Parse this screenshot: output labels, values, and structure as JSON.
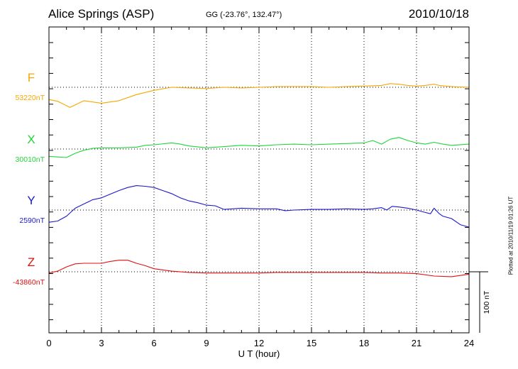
{
  "header": {
    "station": "Alice Springs (ASP)",
    "coords": "GG (-23.76°, 132.47°)",
    "date": "2010/10/18"
  },
  "footer": {
    "plotted": "Plotted at 2010/11/19 01:26 UT"
  },
  "colors": {
    "F": "#f5a800",
    "X": "#1fd63a",
    "Y": "#1a1acc",
    "Z": "#e01010",
    "axes": "#000000",
    "grid": "#000000"
  },
  "chart_data": {
    "type": "line",
    "xlabel": "U T (hour)",
    "xlim": [
      0,
      24
    ],
    "xticks": [
      0,
      3,
      6,
      9,
      12,
      15,
      18,
      21,
      24
    ],
    "grid": true,
    "scale_bar": {
      "label": "100 nT",
      "value": 100
    },
    "series": [
      {
        "name": "F",
        "baseline_label": "53220nT",
        "baseline": 53220,
        "points": [
          [
            0,
            53200
          ],
          [
            0.5,
            53197
          ],
          [
            1.2,
            53187
          ],
          [
            2,
            53198
          ],
          [
            3,
            53194
          ],
          [
            4,
            53198
          ],
          [
            5,
            53208
          ],
          [
            6,
            53215
          ],
          [
            7,
            53220
          ],
          [
            8,
            53219
          ],
          [
            9,
            53218
          ],
          [
            10,
            53220
          ],
          [
            11,
            53219
          ],
          [
            12,
            53220
          ],
          [
            13,
            53221
          ],
          [
            14,
            53221
          ],
          [
            15,
            53221
          ],
          [
            16,
            53220
          ],
          [
            17,
            53221
          ],
          [
            18,
            53222
          ],
          [
            19,
            53223
          ],
          [
            19.5,
            53226
          ],
          [
            20,
            53225
          ],
          [
            20.5,
            53223
          ],
          [
            21,
            53222
          ],
          [
            21.5,
            53223
          ],
          [
            22,
            53225
          ],
          [
            22.3,
            53223
          ],
          [
            23,
            53221
          ],
          [
            24,
            53220
          ]
        ]
      },
      {
        "name": "X",
        "baseline_label": "30010nT",
        "baseline": 30010,
        "points": [
          [
            0,
            29998
          ],
          [
            0.5,
            29997
          ],
          [
            1,
            29996
          ],
          [
            1.5,
            30003
          ],
          [
            2,
            30008
          ],
          [
            2.5,
            30011
          ],
          [
            3,
            30012
          ],
          [
            4,
            30012
          ],
          [
            5,
            30013
          ],
          [
            5.5,
            30016
          ],
          [
            6,
            30017
          ],
          [
            7,
            30020
          ],
          [
            7.5,
            30018
          ],
          [
            8,
            30015
          ],
          [
            9,
            30012
          ],
          [
            10,
            30014
          ],
          [
            11,
            30016
          ],
          [
            12,
            30015
          ],
          [
            13,
            30017
          ],
          [
            14,
            30018
          ],
          [
            15,
            30017
          ],
          [
            16,
            30018
          ],
          [
            17,
            30019
          ],
          [
            18,
            30020
          ],
          [
            18.5,
            30024
          ],
          [
            19,
            30018
          ],
          [
            19.5,
            30026
          ],
          [
            20,
            30029
          ],
          [
            20.5,
            30024
          ],
          [
            21,
            30020
          ],
          [
            21.5,
            30018
          ],
          [
            22,
            30021
          ],
          [
            22.5,
            30018
          ],
          [
            23,
            30016
          ],
          [
            24,
            30018
          ]
        ]
      },
      {
        "name": "Y",
        "baseline_label": "2590nT",
        "baseline": 2590,
        "points": [
          [
            0,
            2570
          ],
          [
            0.5,
            2572
          ],
          [
            1,
            2580
          ],
          [
            1.5,
            2593
          ],
          [
            2,
            2600
          ],
          [
            2.5,
            2607
          ],
          [
            3,
            2610
          ],
          [
            3.5,
            2616
          ],
          [
            4,
            2622
          ],
          [
            4.5,
            2627
          ],
          [
            5,
            2630
          ],
          [
            5.5,
            2629
          ],
          [
            6,
            2627
          ],
          [
            6.5,
            2622
          ],
          [
            7,
            2617
          ],
          [
            7.5,
            2610
          ],
          [
            8,
            2605
          ],
          [
            8.5,
            2602
          ],
          [
            9,
            2598
          ],
          [
            9.5,
            2597
          ],
          [
            10,
            2591
          ],
          [
            10.5,
            2592
          ],
          [
            11,
            2593
          ],
          [
            12,
            2592
          ],
          [
            13,
            2592
          ],
          [
            13.5,
            2589
          ],
          [
            14,
            2590
          ],
          [
            15,
            2591
          ],
          [
            16,
            2591
          ],
          [
            17,
            2592
          ],
          [
            18,
            2591
          ],
          [
            18.5,
            2592
          ],
          [
            19,
            2594
          ],
          [
            19.3,
            2590
          ],
          [
            19.6,
            2596
          ],
          [
            20,
            2595
          ],
          [
            20.5,
            2593
          ],
          [
            21,
            2590
          ],
          [
            21.5,
            2586
          ],
          [
            21.8,
            2584
          ],
          [
            22,
            2593
          ],
          [
            22.3,
            2584
          ],
          [
            22.5,
            2580
          ],
          [
            23,
            2576
          ],
          [
            23.5,
            2566
          ],
          [
            24,
            2562
          ]
        ]
      },
      {
        "name": "Z",
        "baseline_label": "-43860nT",
        "baseline": -43860,
        "points": [
          [
            0,
            -43862
          ],
          [
            0.5,
            -43859
          ],
          [
            1,
            -43852
          ],
          [
            1.5,
            -43847
          ],
          [
            2,
            -43846
          ],
          [
            3,
            -43846
          ],
          [
            3.5,
            -43843
          ],
          [
            4,
            -43841
          ],
          [
            4.5,
            -43841
          ],
          [
            5,
            -43846
          ],
          [
            5.5,
            -43850
          ],
          [
            6,
            -43855
          ],
          [
            7,
            -43859
          ],
          [
            8,
            -43861
          ],
          [
            9,
            -43862
          ],
          [
            10,
            -43862
          ],
          [
            11,
            -43862
          ],
          [
            12,
            -43862
          ],
          [
            13,
            -43861
          ],
          [
            14,
            -43861
          ],
          [
            15,
            -43861
          ],
          [
            16,
            -43861
          ],
          [
            17,
            -43861
          ],
          [
            18,
            -43861
          ],
          [
            19,
            -43862
          ],
          [
            20,
            -43862
          ],
          [
            21,
            -43863
          ],
          [
            22,
            -43867
          ],
          [
            23,
            -43868
          ],
          [
            24,
            -43864
          ]
        ]
      }
    ]
  }
}
